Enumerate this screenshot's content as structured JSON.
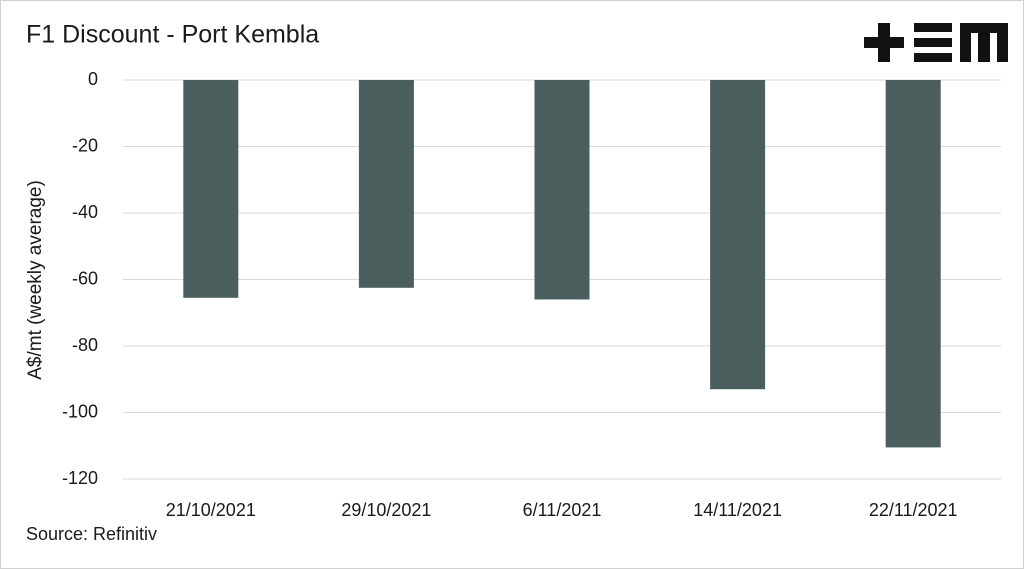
{
  "chart_data": {
    "type": "bar",
    "title": "F1 Discount - Port Kembla",
    "y_label": "A$/mt (weekly average)",
    "source": "Source: Refinitiv",
    "categories": [
      "21/10/2021",
      "29/10/2021",
      "6/11/2021",
      "14/11/2021",
      "22/11/2021"
    ],
    "values": [
      -65.5,
      -62.5,
      -66,
      -93,
      -110.5
    ],
    "color": "#4a5e5e",
    "ylim": [
      -120,
      0
    ],
    "yticks": [
      0,
      -20,
      -40,
      -60,
      -80,
      -100,
      -120
    ],
    "grid": true
  }
}
